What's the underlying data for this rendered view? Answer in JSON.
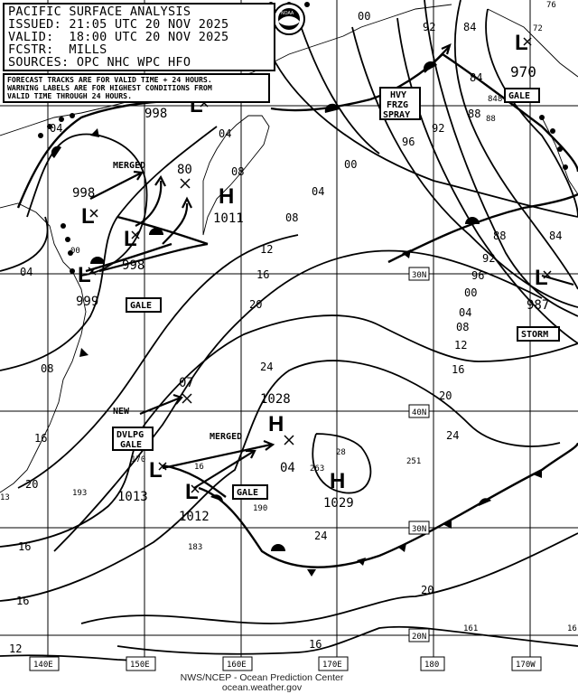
{
  "header": {
    "title": "PACIFIC SURFACE ANALYSIS",
    "issued": "ISSUED: 21:05 UTC 20 NOV 2025",
    "valid": "VALID:  18:00 UTC 20 NOV 2025",
    "forecaster": "FCSTR:  MILLS",
    "sources": "SOURCES: OPC NHC WPC HFO"
  },
  "notice": [
    "FORECAST TRACKS ARE FOR VALID TIME + 24 HOURS.",
    "WARNING LABELS ARE FOR HIGHEST CONDITIONS FROM",
    "VALID TIME THROUGH 24 HOURS."
  ],
  "logo": "NOAA",
  "longitudes": [
    "140E",
    "150E",
    "160E",
    "170E",
    "180",
    "170W"
  ],
  "latitudes": [
    "30N",
    "40N",
    "30N",
    "20N"
  ],
  "pressure_systems": [
    {
      "type": "L",
      "pressure": "998",
      "note": "MERGED"
    },
    {
      "type": "L",
      "pressure": "998"
    },
    {
      "type": "L",
      "pressure": "999"
    },
    {
      "type": "L",
      "pressure": "998"
    },
    {
      "type": "H",
      "pressure": "1011"
    },
    {
      "type": "L",
      "pressure": "970"
    },
    {
      "type": "L",
      "pressure": "987"
    },
    {
      "type": "H",
      "pressure": "1028"
    },
    {
      "type": "H",
      "pressure": "1029"
    },
    {
      "type": "L",
      "pressure": "1013"
    },
    {
      "type": "L",
      "pressure": "1012"
    }
  ],
  "forecast_positions": [
    "80",
    "07",
    "04"
  ],
  "track_labels": [
    "MERGED",
    "NEW",
    "MERGED"
  ],
  "warnings": [
    "GALE",
    "HVY\nFRZG\nSPRAY",
    "GALE",
    "STORM",
    "DVLPG\nGALE",
    "GALE"
  ],
  "isobar_labels": [
    "04",
    "04",
    "00",
    "08",
    "12",
    "16",
    "20",
    "24",
    "08",
    "16",
    "20",
    "00",
    "04",
    "96",
    "92",
    "92",
    "84",
    "84",
    "88",
    "00",
    "04",
    "08",
    "12",
    "16",
    "20",
    "24",
    "20",
    "16",
    "16",
    "12",
    "88",
    "92",
    "96",
    "00",
    "04",
    "08",
    "84",
    "16",
    "24"
  ],
  "station_values": [
    "76",
    "72",
    "848",
    "88",
    "170",
    "16",
    "193",
    "13",
    "190",
    "183",
    "263",
    "251",
    "161",
    "16",
    "28"
  ],
  "credit": [
    "NWS/NCEP - Ocean Prediction Center",
    "ocean.weather.gov"
  ]
}
